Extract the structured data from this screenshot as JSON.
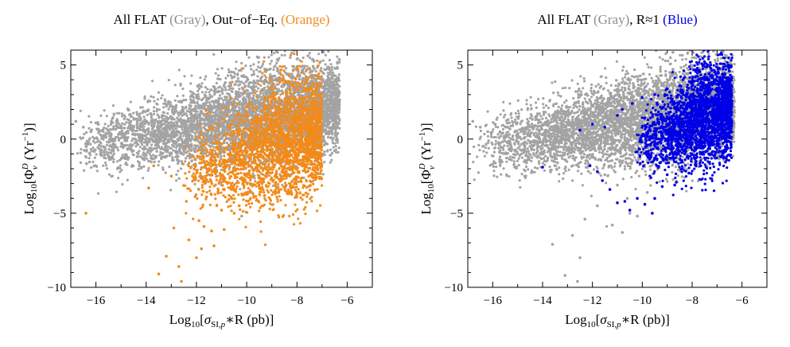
{
  "chart_data": [
    {
      "type": "scatter",
      "title_parts": [
        "All FLAT ",
        "(Gray)",
        ", Out−of−Eq. ",
        "(Orange)"
      ],
      "title_colors": [
        "#000000",
        "#8c8c8c",
        "#000000",
        "#f28a1a"
      ],
      "xlabel": {
        "pre": "Log",
        "sub": "10",
        "open": "[",
        "sym": "σ",
        "symsub": "SI,",
        "symsub_it": "p",
        "rest": "∗R (pb)]"
      },
      "ylabel": {
        "pre": "Log",
        "sub": "10",
        "open": "[",
        "sym": "Φ",
        "symsub": "ν",
        "symsup": "D",
        "rest": " (Yr",
        "restsup": "−1",
        "close": ")]"
      },
      "xlim": [
        -17,
        -5
      ],
      "ylim": [
        -10,
        6
      ],
      "xticks": [
        -16,
        -14,
        -12,
        -10,
        -8,
        -6
      ],
      "xtick_labels": [
        "−16",
        "−14",
        "−12",
        "−10",
        "−8",
        "−6"
      ],
      "yticks": [
        -10,
        -5,
        0,
        5
      ],
      "ytick_labels": [
        "−10",
        "−5",
        "0",
        "5"
      ],
      "grid": false,
      "series": [
        {
          "color": "#a3a3a3",
          "points": [
            [
              -16.8,
              1.2
            ],
            [
              -16.5,
              0.8
            ],
            [
              -16.2,
              0.5
            ],
            [
              -15.9,
              1.0
            ],
            [
              -15.6,
              0.4
            ],
            [
              -15.2,
              0.9
            ],
            [
              -14.9,
              0.1
            ],
            [
              -14.6,
              0.7
            ],
            [
              -14.2,
              0.3
            ],
            [
              -13.9,
              1.1
            ],
            [
              -13.6,
              -0.4
            ],
            [
              -13.2,
              0.6
            ],
            [
              -12.9,
              0.2
            ],
            [
              -12.6,
              1.3
            ],
            [
              -12.3,
              -0.6
            ],
            [
              -12.0,
              0.9
            ],
            [
              -11.7,
              1.6
            ],
            [
              -11.4,
              0.0
            ],
            [
              -11.1,
              1.8
            ],
            [
              -10.8,
              2.1
            ],
            [
              -10.5,
              0.4
            ],
            [
              -10.2,
              2.3
            ],
            [
              -9.9,
              2.5
            ],
            [
              -9.6,
              1.4
            ],
            [
              -9.3,
              2.8
            ],
            [
              -9.0,
              3.0
            ],
            [
              -8.7,
              2.4
            ],
            [
              -8.4,
              3.2
            ],
            [
              -8.1,
              3.4
            ],
            [
              -7.8,
              2.9
            ],
            [
              -7.5,
              3.6
            ],
            [
              -7.2,
              3.8
            ],
            [
              -6.9,
              3.3
            ],
            [
              -6.6,
              4.1
            ],
            [
              -6.4,
              3.0
            ],
            [
              -11.5,
              -2.4
            ],
            [
              -11.0,
              -3.1
            ],
            [
              -10.6,
              -4.0
            ],
            [
              -10.2,
              -5.2
            ],
            [
              -9.8,
              -3.6
            ],
            [
              -12.2,
              -1.2
            ],
            [
              -12.8,
              -0.8
            ],
            [
              -13.4,
              0.3
            ],
            [
              -14.4,
              -0.2
            ],
            [
              -15.4,
              0.2
            ]
          ],
          "region": {
            "xmin": -16.8,
            "xmax": -6.3,
            "center_y": 0.9,
            "spread": 1.2,
            "slope": 0.28
          }
        },
        {
          "color": "#f28a1a",
          "points": [
            [
              -16.4,
              -5.0
            ],
            [
              -13.9,
              -3.3
            ],
            [
              -13.7,
              -1.8
            ],
            [
              -13.5,
              -9.1
            ],
            [
              -13.2,
              -7.9
            ],
            [
              -12.9,
              -6.0
            ],
            [
              -12.7,
              -8.6
            ],
            [
              -12.6,
              -9.6
            ],
            [
              -12.4,
              -4.2
            ],
            [
              -12.3,
              -6.8
            ],
            [
              -12.1,
              -2.6
            ],
            [
              -11.9,
              -5.5
            ],
            [
              -11.8,
              -7.4
            ],
            [
              -11.6,
              -3.9
            ],
            [
              -11.4,
              -6.2
            ],
            [
              -11.2,
              -2.1
            ],
            [
              -11.0,
              -4.8
            ],
            [
              -10.8,
              -1.5
            ],
            [
              -10.6,
              -3.4
            ],
            [
              -10.4,
              -0.9
            ],
            [
              -10.2,
              -2.6
            ],
            [
              -10.0,
              -0.5
            ],
            [
              -9.8,
              -1.9
            ],
            [
              -9.6,
              0.1
            ],
            [
              -9.4,
              -1.2
            ],
            [
              -9.2,
              0.6
            ],
            [
              -9.0,
              -0.4
            ],
            [
              -8.8,
              1.0
            ],
            [
              -8.6,
              0.2
            ],
            [
              -8.4,
              1.4
            ],
            [
              -8.2,
              0.7
            ],
            [
              -8.0,
              1.8
            ],
            [
              -7.8,
              1.1
            ],
            [
              -7.6,
              2.0
            ],
            [
              -7.4,
              1.5
            ],
            [
              -7.2,
              2.2
            ],
            [
              -11.7,
              -5.9
            ],
            [
              -11.3,
              -7.2
            ],
            [
              -10.9,
              -6.1
            ],
            [
              -10.5,
              -5.0
            ],
            [
              -12.0,
              -8.0
            ],
            [
              -10.3,
              -4.5
            ],
            [
              -9.9,
              -3.6
            ],
            [
              -13.0,
              -2.5
            ]
          ],
          "region": {
            "xmin": -12.6,
            "xmax": -7.0,
            "center_y": -1.0,
            "spread": 1.5,
            "slope": 0.55
          }
        }
      ]
    },
    {
      "type": "scatter",
      "title_parts": [
        "All FLAT ",
        "(Gray)",
        ", R≈1 ",
        "(Blue)"
      ],
      "title_colors": [
        "#000000",
        "#8c8c8c",
        "#000000",
        "#0000e6"
      ],
      "xlabel": {
        "pre": "Log",
        "sub": "10",
        "open": "[",
        "sym": "σ",
        "symsub": "SI,",
        "symsub_it": "p",
        "rest": "∗R (pb)]"
      },
      "ylabel": {
        "pre": "Log",
        "sub": "10",
        "open": "[",
        "sym": "Φ",
        "symsub": "ν",
        "symsup": "D",
        "rest": " (Yr",
        "restsup": "−1",
        "close": ")]"
      },
      "xlim": [
        -17,
        -5
      ],
      "ylim": [
        -10,
        6
      ],
      "xticks": [
        -16,
        -14,
        -12,
        -10,
        -8,
        -6
      ],
      "xtick_labels": [
        "−16",
        "−14",
        "−12",
        "−10",
        "−8",
        "−6"
      ],
      "yticks": [
        -10,
        -5,
        0,
        5
      ],
      "ytick_labels": [
        "−10",
        "−5",
        "0",
        "5"
      ],
      "grid": false,
      "series": [
        {
          "color": "#a3a3a3",
          "points": [
            [
              -16.8,
              1.2
            ],
            [
              -16.5,
              0.8
            ],
            [
              -16.2,
              0.5
            ],
            [
              -15.9,
              1.0
            ],
            [
              -15.6,
              0.4
            ],
            [
              -15.2,
              0.9
            ],
            [
              -14.9,
              0.1
            ],
            [
              -14.6,
              0.7
            ],
            [
              -14.2,
              0.3
            ],
            [
              -13.9,
              1.1
            ],
            [
              -13.6,
              -0.4
            ],
            [
              -13.2,
              0.6
            ],
            [
              -12.9,
              0.2
            ],
            [
              -12.6,
              1.3
            ],
            [
              -12.3,
              -0.6
            ],
            [
              -12.0,
              0.9
            ],
            [
              -11.7,
              1.6
            ],
            [
              -11.4,
              0.0
            ],
            [
              -11.1,
              1.8
            ],
            [
              -10.8,
              2.1
            ],
            [
              -10.5,
              0.4
            ],
            [
              -10.2,
              2.3
            ],
            [
              -9.9,
              2.5
            ],
            [
              -9.6,
              1.4
            ],
            [
              -9.3,
              2.8
            ],
            [
              -9.0,
              3.0
            ],
            [
              -8.7,
              2.4
            ],
            [
              -8.4,
              3.2
            ],
            [
              -8.1,
              3.4
            ],
            [
              -7.8,
              2.9
            ],
            [
              -7.5,
              3.6
            ],
            [
              -7.2,
              3.8
            ],
            [
              -6.9,
              3.3
            ],
            [
              -6.6,
              4.1
            ],
            [
              -6.4,
              3.0
            ],
            [
              -11.5,
              -2.4
            ],
            [
              -11.0,
              -3.1
            ],
            [
              -10.6,
              -4.0
            ],
            [
              -10.2,
              -5.2
            ],
            [
              -9.8,
              -3.6
            ],
            [
              -12.2,
              -1.2
            ],
            [
              -12.8,
              -0.8
            ],
            [
              -13.4,
              0.3
            ],
            [
              -14.4,
              -0.2
            ],
            [
              -15.4,
              0.2
            ],
            [
              -12.8,
              -6.5
            ],
            [
              -12.5,
              -8.0
            ],
            [
              -13.1,
              -9.2
            ],
            [
              -11.2,
              -5.8
            ],
            [
              -10.8,
              -6.3
            ],
            [
              -13.6,
              -7.1
            ],
            [
              -12.6,
              -9.6
            ],
            [
              -10.5,
              -5.0
            ],
            [
              -11.8,
              -4.5
            ],
            [
              -12.3,
              -5.4
            ]
          ],
          "region": {
            "xmin": -16.8,
            "xmax": -6.3,
            "center_y": 0.9,
            "spread": 1.2,
            "slope": 0.28
          }
        },
        {
          "color": "#0000e6",
          "points": [
            [
              -14.0,
              -1.9
            ],
            [
              -12.1,
              -1.8
            ],
            [
              -11.8,
              -2.2
            ],
            [
              -11.6,
              -2.8
            ],
            [
              -11.3,
              -3.4
            ],
            [
              -11.0,
              -4.3
            ],
            [
              -10.7,
              -4.2
            ],
            [
              -10.5,
              -4.8
            ],
            [
              -10.2,
              -4.0
            ],
            [
              -9.9,
              -4.4
            ],
            [
              -9.6,
              -5.0
            ],
            [
              -9.5,
              -4.0
            ],
            [
              -9.2,
              -3.2
            ],
            [
              -12.5,
              0.6
            ],
            [
              -12.0,
              1.0
            ],
            [
              -11.5,
              0.8
            ],
            [
              -11.0,
              1.6
            ],
            [
              -10.8,
              2.0
            ],
            [
              -10.4,
              2.4
            ],
            [
              -10.0,
              2.8
            ],
            [
              -9.5,
              3.0
            ],
            [
              -9.0,
              3.4
            ],
            [
              -8.5,
              3.6
            ],
            [
              -8.0,
              3.8
            ],
            [
              -7.5,
              4.0
            ],
            [
              -7.0,
              4.2
            ],
            [
              -6.8,
              4.1
            ],
            [
              -9.8,
              0.2
            ],
            [
              -9.3,
              -1.6
            ],
            [
              -9.0,
              -2.4
            ],
            [
              -8.7,
              -3.1
            ],
            [
              -8.4,
              -2.0
            ]
          ],
          "region": {
            "xmin": -10.3,
            "xmax": -6.4,
            "center_y": 0.9,
            "spread": 1.3,
            "slope": 0.7
          }
        }
      ]
    }
  ]
}
